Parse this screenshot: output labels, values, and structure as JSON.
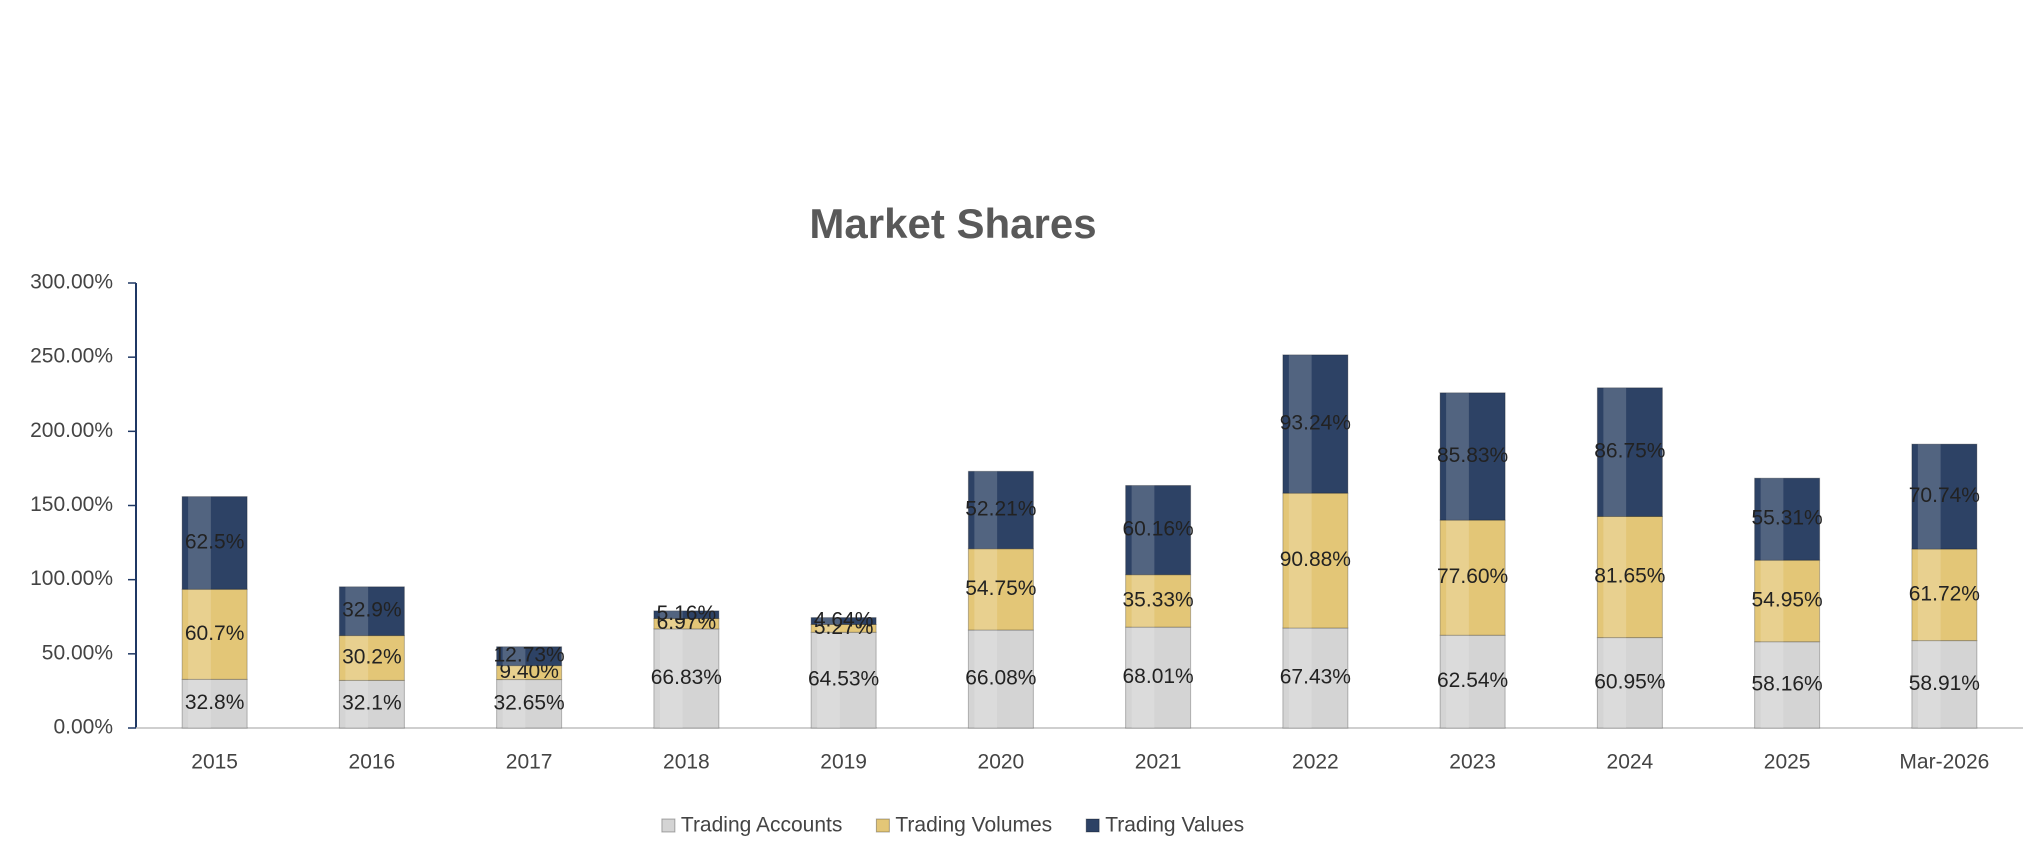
{
  "chart_data": {
    "type": "stacked_bar",
    "title": "Market Shares",
    "categories": [
      "2015",
      "2016",
      "2017",
      "2018",
      "2019",
      "2020",
      "2021",
      "2022",
      "2023",
      "2024",
      "2025",
      "Mar-2026"
    ],
    "series": [
      {
        "name": "Trading Accounts",
        "color": "#d4d4d4",
        "values": [
          32.8,
          32.1,
          32.65,
          66.83,
          64.53,
          66.08,
          68.01,
          67.43,
          62.54,
          60.95,
          58.16,
          58.91
        ],
        "value_labels": [
          "32.8%",
          "32.1%",
          "32.65%",
          "66.83%",
          "64.53%",
          "66.08%",
          "68.01%",
          "67.43%",
          "62.54%",
          "60.95%",
          "58.16%",
          "58.91%"
        ]
      },
      {
        "name": "Trading Volumes",
        "color": "#e3c677",
        "values": [
          60.7,
          30.2,
          9.4,
          6.97,
          5.27,
          54.75,
          35.33,
          90.88,
          77.6,
          81.65,
          54.95,
          61.72
        ],
        "value_labels": [
          "60.7%",
          "30.2%",
          "9.40%",
          "6.97%",
          "5.27%",
          "54.75%",
          "35.33%",
          "90.88%",
          "77.60%",
          "81.65%",
          "54.95%",
          "61.72%"
        ]
      },
      {
        "name": "Trading Values",
        "color": "#2d4265",
        "values": [
          62.5,
          32.9,
          12.73,
          5.16,
          4.64,
          52.21,
          60.16,
          93.24,
          85.83,
          86.75,
          55.31,
          70.74
        ],
        "value_labels": [
          "62.5%",
          "32.9%",
          "12.73%",
          "5.16%",
          "4.64%",
          "52.21%",
          "60.16%",
          "93.24%",
          "85.83%",
          "86.75%",
          "55.31%",
          "70.74%"
        ]
      }
    ],
    "ylim": [
      0,
      300
    ],
    "yticks": [
      {
        "value": 0,
        "label": "0.00%"
      },
      {
        "value": 50,
        "label": "50.00%"
      },
      {
        "value": 100,
        "label": "100.00%"
      },
      {
        "value": 150,
        "label": "150.00%"
      },
      {
        "value": 200,
        "label": "200.00%"
      },
      {
        "value": 250,
        "label": "250.00%"
      },
      {
        "value": 300,
        "label": "300.00%"
      }
    ],
    "legend": "bottom"
  }
}
